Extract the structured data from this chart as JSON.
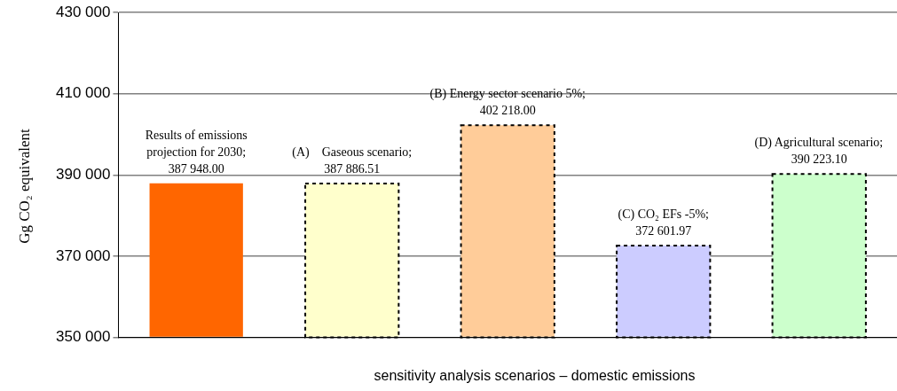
{
  "chart_data": {
    "type": "bar",
    "xlabel": "sensitivity analysis scenarios – domestic emissions",
    "ylabel": "Gg CO₂ equivalent",
    "categories": [
      null,
      null,
      null,
      null,
      null
    ],
    "values": [
      387948.0,
      387886.51,
      402218.0,
      372601.97,
      390223.1
    ],
    "colors": [
      "#ff6600",
      "#ffffcc",
      "#ffcc99",
      "#ccccff",
      "#ccffcc"
    ],
    "value_labels": [
      "Results of emissions projection for 2030; 387 948.00",
      "(A)    Gaseous scenario; 387 886.51",
      "(B) Energy sector scenario 5%; 402 218.00",
      "(C) CO₂ EFs -5%; 372 601.97",
      "(D) Agricultural scenario; 390 223.10"
    ],
    "ylim": [
      350000,
      430000
    ],
    "yticks": [
      {
        "value": 350000,
        "label": "350 000"
      },
      {
        "value": 370000,
        "label": "370 000"
      },
      {
        "value": 390000,
        "label": "390 000"
      },
      {
        "value": 410000,
        "label": "410 000"
      },
      {
        "value": 430000,
        "label": "430 000"
      }
    ],
    "grid": "y",
    "legend": false
  }
}
